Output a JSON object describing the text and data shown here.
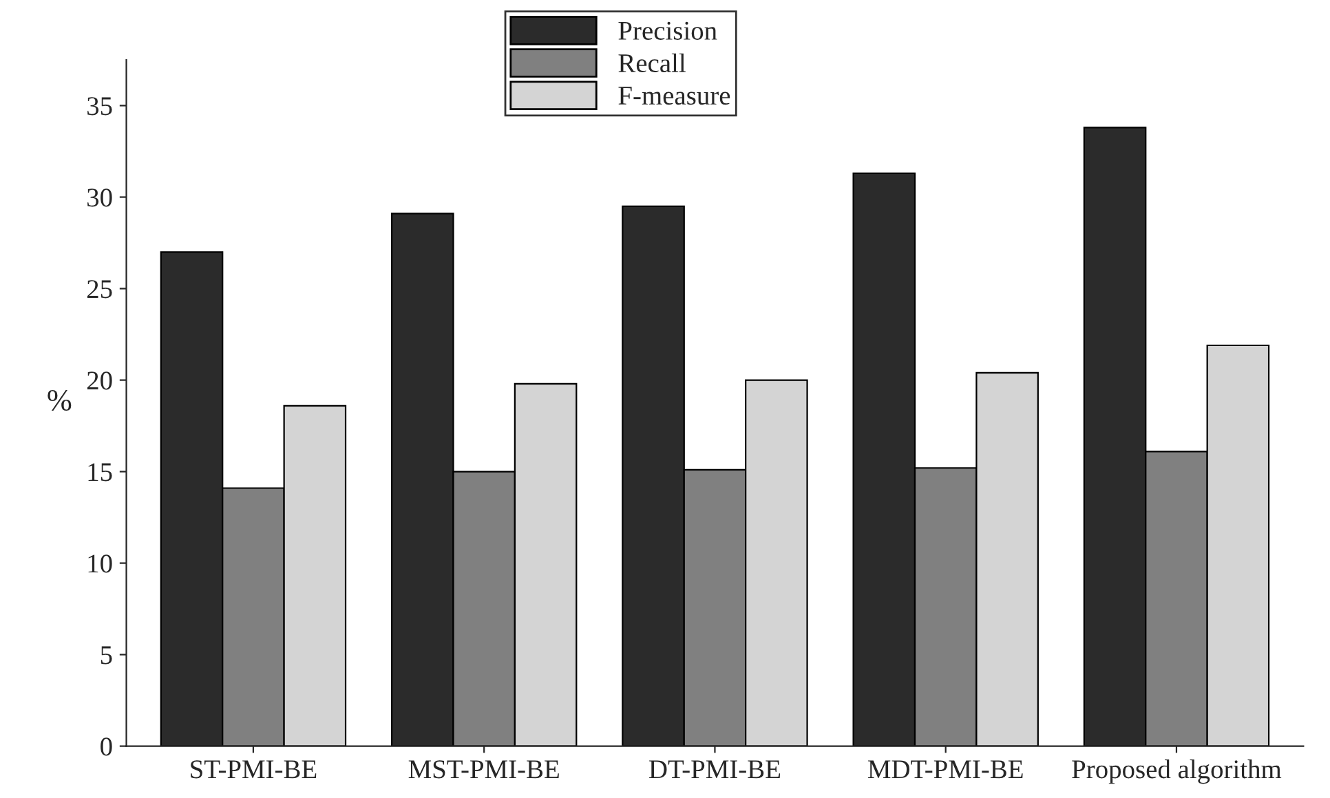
{
  "chart_data": {
    "type": "bar",
    "ylabel": "%",
    "categories": [
      "ST-PMI-BE",
      "MST-PMI-BE",
      "DT-PMI-BE",
      "MDT-PMI-BE",
      "Proposed algorithm"
    ],
    "series": [
      {
        "name": "Precision",
        "color": "#2b2b2b",
        "values": [
          27.0,
          29.1,
          29.5,
          31.3,
          33.8
        ]
      },
      {
        "name": "Recall",
        "color": "#808080",
        "values": [
          14.1,
          15.0,
          15.1,
          15.2,
          16.1
        ]
      },
      {
        "name": "F-measure",
        "color": "#d4d4d4",
        "values": [
          18.6,
          19.8,
          20.0,
          20.4,
          21.9
        ]
      }
    ],
    "ylim": [
      0,
      37.5
    ],
    "yticks": [
      0,
      5,
      10,
      15,
      20,
      25,
      30,
      35
    ],
    "grid": false,
    "legend": "top"
  }
}
